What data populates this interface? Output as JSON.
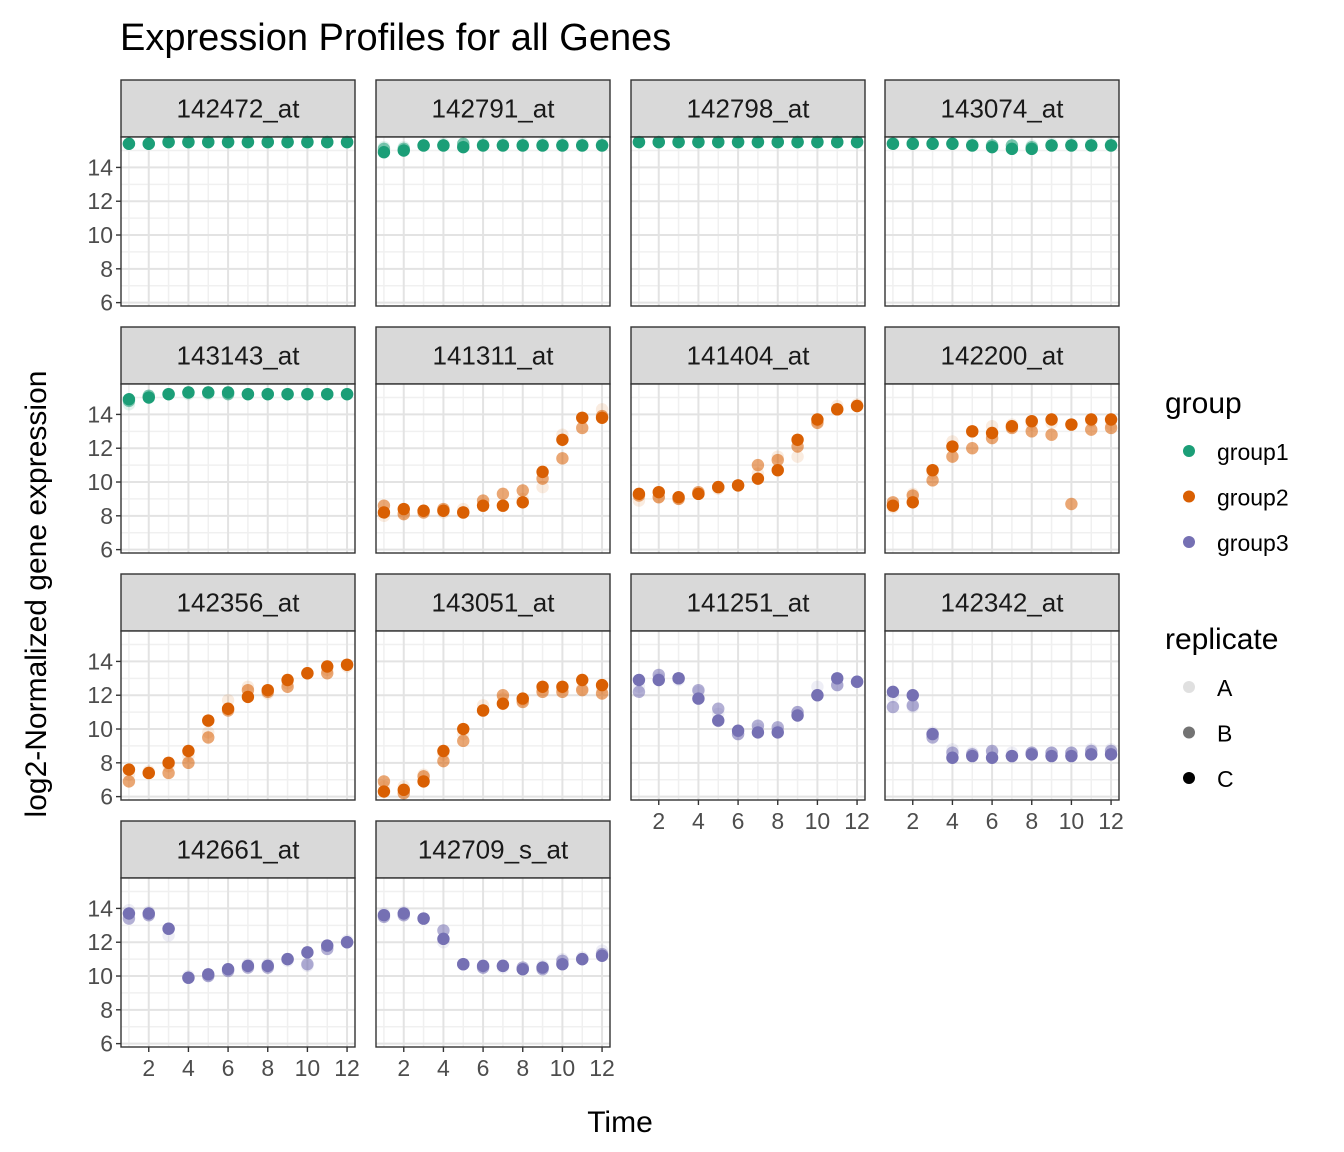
{
  "chart_data": {
    "type": "scatter",
    "title": "Expression Profiles for all Genes",
    "xlabel": "Time",
    "ylabel": "log2-Normalized gene expression",
    "xlim": [
      0.6,
      12.4
    ],
    "ylim": [
      5.8,
      15.8
    ],
    "x_ticks": [
      2,
      4,
      6,
      8,
      10,
      12
    ],
    "y_ticks": [
      6,
      8,
      10,
      12,
      14
    ],
    "grid": true,
    "legend_position": "right",
    "group_legend": {
      "title": "group",
      "entries": [
        {
          "label": "group1",
          "color": "#1b9e77"
        },
        {
          "label": "group2",
          "color": "#d95f02"
        },
        {
          "label": "group3",
          "color": "#7570b3"
        }
      ]
    },
    "replicate_legend": {
      "title": "replicate",
      "entries": [
        {
          "label": "A",
          "alpha": 0.12
        },
        {
          "label": "B",
          "alpha": 0.55
        },
        {
          "label": "C",
          "alpha": 1.0
        }
      ]
    },
    "panels": [
      {
        "title": "142472_at",
        "group": "group1",
        "A": [
          15.4,
          15.4,
          15.5,
          15.5,
          15.5,
          15.5,
          15.5,
          15.5,
          15.5,
          15.5,
          15.5,
          15.5
        ],
        "B": [
          15.4,
          15.4,
          15.5,
          15.5,
          15.5,
          15.5,
          15.5,
          15.5,
          15.5,
          15.5,
          15.5,
          15.5
        ],
        "C": [
          15.4,
          15.4,
          15.5,
          15.5,
          15.5,
          15.5,
          15.5,
          15.5,
          15.5,
          15.5,
          15.5,
          15.5
        ]
      },
      {
        "title": "142791_at",
        "group": "group1",
        "A": [
          15.2,
          15.2,
          15.3,
          15.4,
          15.4,
          15.4,
          15.4,
          15.4,
          15.4,
          15.4,
          15.4,
          15.4
        ],
        "B": [
          15.1,
          15.1,
          15.3,
          15.3,
          15.4,
          15.3,
          15.3,
          15.3,
          15.3,
          15.3,
          15.3,
          15.3
        ],
        "C": [
          14.9,
          15.0,
          15.3,
          15.3,
          15.2,
          15.3,
          15.3,
          15.3,
          15.3,
          15.3,
          15.3,
          15.3
        ]
      },
      {
        "title": "142798_at",
        "group": "group1",
        "A": [
          15.5,
          15.5,
          15.5,
          15.5,
          15.5,
          15.5,
          15.5,
          15.5,
          15.5,
          15.5,
          15.5,
          15.5
        ],
        "B": [
          15.5,
          15.5,
          15.5,
          15.5,
          15.5,
          15.5,
          15.5,
          15.5,
          15.5,
          15.5,
          15.5,
          15.5
        ],
        "C": [
          15.5,
          15.5,
          15.5,
          15.5,
          15.5,
          15.5,
          15.5,
          15.5,
          15.5,
          15.5,
          15.5,
          15.5
        ]
      },
      {
        "title": "143074_at",
        "group": "group1",
        "A": [
          15.5,
          15.5,
          15.4,
          15.4,
          15.4,
          15.3,
          15.3,
          15.3,
          15.4,
          15.4,
          15.4,
          15.4
        ],
        "B": [
          15.4,
          15.4,
          15.4,
          15.4,
          15.3,
          15.3,
          15.3,
          15.2,
          15.3,
          15.3,
          15.3,
          15.3
        ],
        "C": [
          15.4,
          15.4,
          15.4,
          15.4,
          15.3,
          15.2,
          15.1,
          15.1,
          15.3,
          15.3,
          15.3,
          15.3
        ]
      },
      {
        "title": "143143_at",
        "group": "group1",
        "A": [
          14.6,
          15.1,
          15.2,
          15.2,
          15.2,
          15.2,
          15.2,
          15.2,
          15.2,
          15.2,
          15.2,
          15.2
        ],
        "B": [
          14.8,
          15.1,
          15.2,
          15.3,
          15.3,
          15.2,
          15.2,
          15.2,
          15.2,
          15.2,
          15.2,
          15.2
        ],
        "C": [
          14.9,
          15.0,
          15.2,
          15.3,
          15.3,
          15.3,
          15.2,
          15.2,
          15.2,
          15.2,
          15.2,
          15.2
        ]
      },
      {
        "title": "141311_at",
        "group": "group2",
        "A": [
          8.0,
          8.2,
          8.3,
          8.2,
          8.4,
          8.6,
          8.6,
          9.0,
          9.7,
          12.8,
          13.8,
          14.3
        ],
        "B": [
          8.6,
          8.1,
          8.2,
          8.4,
          8.2,
          8.9,
          9.3,
          9.5,
          10.2,
          11.4,
          13.2,
          13.9
        ],
        "C": [
          8.2,
          8.4,
          8.3,
          8.3,
          8.2,
          8.6,
          8.6,
          8.8,
          10.6,
          12.5,
          13.8,
          13.8
        ]
      },
      {
        "title": "141404_at",
        "group": "group2",
        "A": [
          8.9,
          9.1,
          9.0,
          9.3,
          9.6,
          9.8,
          10.5,
          11.5,
          11.5,
          13.6,
          14.5,
          14.6
        ],
        "B": [
          9.2,
          9.1,
          9.0,
          9.4,
          9.7,
          9.8,
          11.0,
          11.3,
          12.1,
          13.5,
          14.3,
          14.5
        ],
        "C": [
          9.3,
          9.4,
          9.1,
          9.3,
          9.7,
          9.8,
          10.2,
          10.7,
          12.5,
          13.7,
          14.3,
          14.5
        ]
      },
      {
        "title": "142200_at",
        "group": "group2",
        "A": [
          8.5,
          9.3,
          10.5,
          12.4,
          13.0,
          13.3,
          13.4,
          13.4,
          13.5,
          13.4,
          13.6,
          13.4
        ],
        "B": [
          8.8,
          9.2,
          10.1,
          11.5,
          12.0,
          12.6,
          13.2,
          13.0,
          12.8,
          8.7,
          13.1,
          13.2
        ],
        "C": [
          8.6,
          8.8,
          10.7,
          12.1,
          13.0,
          12.9,
          13.3,
          13.6,
          13.7,
          13.4,
          13.7,
          13.7
        ]
      },
      {
        "title": "142356_at",
        "group": "group2",
        "A": [
          7.3,
          7.5,
          7.8,
          8.4,
          9.8,
          11.7,
          12.5,
          12.1,
          12.7,
          13.3,
          13.5,
          13.7
        ],
        "B": [
          6.9,
          7.4,
          7.4,
          8.0,
          9.5,
          11.1,
          12.3,
          12.2,
          12.5,
          13.3,
          13.3,
          13.8
        ],
        "C": [
          7.6,
          7.4,
          8.0,
          8.7,
          10.5,
          11.2,
          11.9,
          12.3,
          12.9,
          13.3,
          13.7,
          13.8
        ]
      },
      {
        "title": "143051_at",
        "group": "group2",
        "A": [
          6.6,
          6.6,
          7.3,
          8.5,
          9.7,
          11.4,
          11.8,
          11.7,
          12.3,
          12.4,
          12.4,
          12.4
        ],
        "B": [
          6.9,
          6.2,
          7.2,
          8.1,
          9.3,
          11.1,
          12.0,
          11.6,
          12.2,
          12.2,
          12.3,
          12.1
        ],
        "C": [
          6.3,
          6.4,
          6.9,
          8.7,
          10.0,
          11.1,
          11.5,
          11.8,
          12.5,
          12.5,
          12.9,
          12.6
        ]
      },
      {
        "title": "141251_at",
        "group": "group3",
        "A": [
          12.5,
          13.0,
          12.9,
          12.2,
          10.9,
          9.7,
          10.0,
          9.9,
          11.0,
          12.5,
          12.6,
          12.8
        ],
        "B": [
          12.2,
          13.2,
          13.0,
          12.3,
          11.2,
          9.7,
          10.2,
          10.1,
          11.0,
          12.0,
          12.6,
          12.8
        ],
        "C": [
          12.9,
          12.9,
          13.0,
          11.8,
          10.5,
          9.9,
          9.8,
          9.8,
          10.8,
          12.0,
          13.0,
          12.8
        ]
      },
      {
        "title": "142342_at",
        "group": "group3",
        "A": [
          11.9,
          11.3,
          9.8,
          8.8,
          8.6,
          8.6,
          8.6,
          8.6,
          8.6,
          8.6,
          8.8,
          8.8
        ],
        "B": [
          11.3,
          11.4,
          9.5,
          8.6,
          8.5,
          8.7,
          8.4,
          8.6,
          8.6,
          8.6,
          8.7,
          8.7
        ],
        "C": [
          12.2,
          12.0,
          9.7,
          8.3,
          8.4,
          8.3,
          8.4,
          8.5,
          8.4,
          8.4,
          8.5,
          8.5
        ]
      },
      {
        "title": "142661_at",
        "group": "group3",
        "A": [
          13.9,
          13.8,
          12.4,
          10.0,
          10.0,
          10.4,
          10.7,
          10.7,
          10.9,
          10.6,
          11.8,
          12.1
        ],
        "B": [
          13.4,
          13.6,
          12.8,
          9.9,
          10.0,
          10.3,
          10.5,
          10.5,
          11.0,
          10.7,
          11.6,
          12.0
        ],
        "C": [
          13.7,
          13.7,
          12.8,
          9.9,
          10.1,
          10.4,
          10.6,
          10.6,
          11.0,
          11.4,
          11.8,
          12.0
        ]
      },
      {
        "title": "142709_s_at",
        "group": "group3",
        "A": [
          13.7,
          13.8,
          13.4,
          12.0,
          10.7,
          10.5,
          10.5,
          10.4,
          10.6,
          11.0,
          11.1,
          11.5
        ],
        "B": [
          13.5,
          13.6,
          13.4,
          12.7,
          10.7,
          10.5,
          10.6,
          10.5,
          10.4,
          10.9,
          11.0,
          11.3
        ],
        "C": [
          13.6,
          13.7,
          13.4,
          12.2,
          10.7,
          10.6,
          10.6,
          10.4,
          10.5,
          10.7,
          11.0,
          11.2
        ]
      }
    ]
  }
}
